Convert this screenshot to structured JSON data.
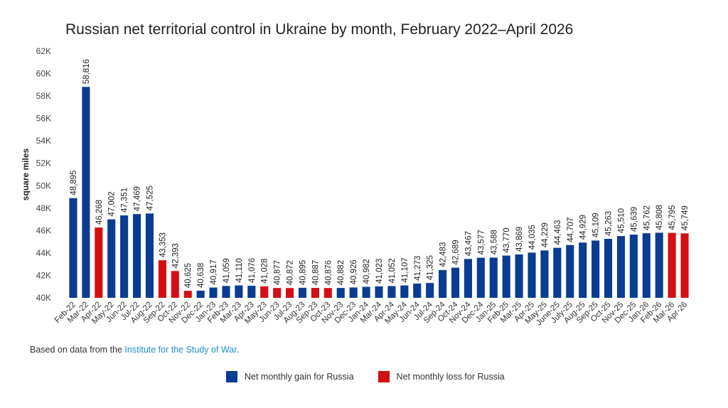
{
  "chart_data": {
    "type": "bar",
    "title": "Russian net territorial control in Ukraine by month, February 2022–April 2026",
    "ylabel": "square miles",
    "xlabel": "",
    "ylim": [
      40000,
      62000
    ],
    "yticks": [
      40000,
      42000,
      44000,
      46000,
      48000,
      50000,
      52000,
      54000,
      56000,
      58000,
      60000,
      62000
    ],
    "ytick_labels": [
      "40K",
      "42K",
      "44K",
      "46K",
      "48K",
      "50K",
      "52K",
      "54K",
      "56K",
      "58K",
      "60K",
      "62K"
    ],
    "grid": false,
    "legend_position": "bottom",
    "colors": {
      "gain": "#0a3d91",
      "loss": "#d40f14"
    },
    "categories": [
      "Feb-22",
      "Mar-22",
      "Apr-22",
      "May-22",
      "Jun-22",
      "Jul-22",
      "Aug-22",
      "Sep-22",
      "Oct-22",
      "Nov-22",
      "Dec-22",
      "Jan-23",
      "Feb-23",
      "Mar-23",
      "Apr-23",
      "May-23",
      "Jun-23",
      "Jul-23",
      "Aug-23",
      "Sep-23",
      "Oct-23",
      "Nov-23",
      "Dec-23",
      "Jan-24",
      "Mar-24",
      "Apr-24",
      "May-24",
      "Jun-24",
      "Jul-24",
      "Sep-24",
      "Oct-24",
      "Nov-24",
      "Dec-24",
      "Jan-25",
      "Feb-25",
      "Mar-25",
      "Apr-25",
      "May-25",
      "June-25",
      "July-25",
      "Aug-25",
      "Sep-25",
      "Oct-25",
      "Nov-25",
      "Dec-25",
      "Jan-26",
      "Feb-26",
      "Mar-26",
      "Apr-26"
    ],
    "values": [
      48895,
      58816,
      46268,
      47002,
      47351,
      47469,
      47525,
      43353,
      42393,
      40625,
      40638,
      40917,
      41059,
      41110,
      41076,
      41028,
      40877,
      40872,
      40895,
      40887,
      40876,
      40882,
      40926,
      40982,
      41023,
      41052,
      41107,
      41273,
      41325,
      42483,
      42689,
      43467,
      43577,
      43588,
      43770,
      43869,
      44035,
      44229,
      44463,
      44707,
      44929,
      45109,
      45263,
      45510,
      45639,
      45762,
      45808,
      45795,
      45749
    ],
    "data_labels": [
      "48,895",
      "58,816",
      "46,268",
      "47,002",
      "47,351",
      "47,469",
      "47,525",
      "43,353",
      "42,393",
      "40,625",
      "40,638",
      "40,917",
      "41,059",
      "41,110",
      "41,076",
      "41,028",
      "40,877",
      "40,872",
      "40,895",
      "40,887",
      "40,876",
      "40,882",
      "40,926",
      "40,982",
      "41,023",
      "41,052",
      "41,107",
      "41,273",
      "41,325",
      "42,483",
      "42,689",
      "43,467",
      "43,577",
      "43,588",
      "43,770",
      "43,869",
      "44,035",
      "44,229",
      "44,463",
      "44,707",
      "44,929",
      "45,109",
      "45,263",
      "45,510",
      "45,639",
      "45,762",
      "45,808",
      "45,795",
      "45,749"
    ],
    "bar_type": [
      "gain",
      "gain",
      "loss",
      "gain",
      "gain",
      "gain",
      "gain",
      "loss",
      "loss",
      "loss",
      "gain",
      "gain",
      "gain",
      "gain",
      "gain",
      "loss",
      "loss",
      "loss",
      "gain",
      "loss",
      "loss",
      "gain",
      "gain",
      "gain",
      "gain",
      "gain",
      "gain",
      "gain",
      "gain",
      "gain",
      "gain",
      "gain",
      "gain",
      "gain",
      "gain",
      "gain",
      "gain",
      "gain",
      "gain",
      "gain",
      "gain",
      "gain",
      "gain",
      "gain",
      "gain",
      "gain",
      "gain",
      "loss",
      "loss"
    ],
    "legend": [
      {
        "key": "gain",
        "label": "Net monthly gain for Russia"
      },
      {
        "key": "loss",
        "label": "Net monthly loss for Russia"
      }
    ]
  },
  "source": {
    "prefix": "Based on data from the ",
    "link_text": "Institute for the Study of War",
    "suffix": "."
  }
}
